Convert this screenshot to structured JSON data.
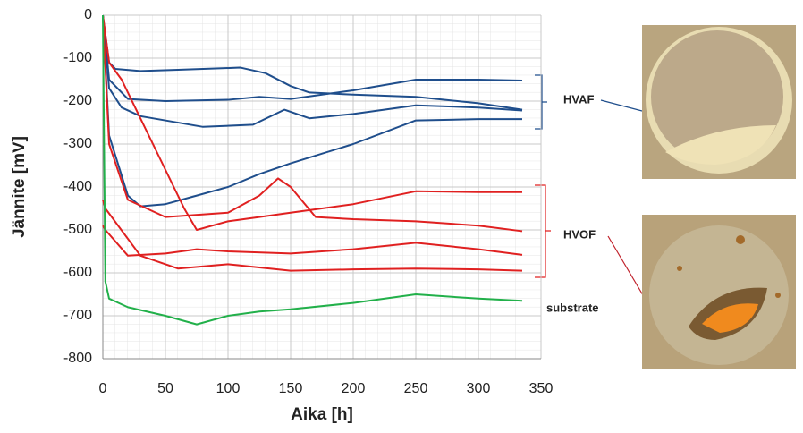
{
  "chart_data": {
    "type": "line",
    "xlabel": "Aika [h]",
    "ylabel": "Jännite [mV]",
    "xlim": [
      0,
      350
    ],
    "xticks": [
      0,
      50,
      100,
      150,
      200,
      250,
      300,
      350
    ],
    "ylim": [
      -800,
      0
    ],
    "yticks": [
      0,
      -100,
      -200,
      -300,
      -400,
      -500,
      -600,
      -700,
      -800
    ],
    "grid": true,
    "annotations": [
      "HVAF",
      "HVOF",
      "substrate"
    ],
    "series": [
      {
        "color": "#1f4e8c",
        "x": [
          0,
          5,
          10,
          30,
          60,
          110,
          130,
          150,
          165,
          200,
          250,
          300,
          335
        ],
        "values": [
          0,
          -110,
          -125,
          -130,
          -127,
          -122,
          -135,
          -165,
          -180,
          -185,
          -190,
          -205,
          -220
        ]
      },
      {
        "color": "#1f4e8c",
        "x": [
          0,
          5,
          20,
          50,
          100,
          125,
          150,
          200,
          250,
          300,
          335
        ],
        "values": [
          0,
          -150,
          -195,
          -200,
          -197,
          -190,
          -195,
          -175,
          -150,
          -150,
          -152
        ]
      },
      {
        "color": "#1f4e8c",
        "x": [
          0,
          5,
          15,
          30,
          80,
          120,
          145,
          165,
          200,
          250,
          300,
          335
        ],
        "values": [
          0,
          -170,
          -215,
          -235,
          -260,
          -255,
          -220,
          -240,
          -230,
          -210,
          -215,
          -222
        ]
      },
      {
        "color": "#1f4e8c",
        "x": [
          0,
          5,
          20,
          30,
          50,
          75,
          100,
          125,
          150,
          200,
          250,
          300,
          335
        ],
        "values": [
          0,
          -280,
          -420,
          -445,
          -440,
          -420,
          -400,
          -370,
          -345,
          -300,
          -245,
          -242,
          -242
        ]
      },
      {
        "color": "#e02020",
        "x": [
          0,
          5,
          15,
          40,
          65,
          75,
          100,
          125,
          150,
          200,
          250,
          300,
          335
        ],
        "values": [
          0,
          -110,
          -150,
          -300,
          -450,
          -500,
          -480,
          -470,
          -460,
          -440,
          -410,
          -412,
          -412
        ]
      },
      {
        "color": "#e02020",
        "x": [
          0,
          5,
          20,
          50,
          100,
          125,
          140,
          150,
          170,
          200,
          250,
          300,
          335
        ],
        "values": [
          0,
          -300,
          -430,
          -470,
          -460,
          -420,
          -380,
          -400,
          -470,
          -475,
          -480,
          -490,
          -503
        ]
      },
      {
        "color": "#e02020",
        "x": [
          0,
          2,
          20,
          50,
          75,
          100,
          150,
          200,
          250,
          300,
          335
        ],
        "values": [
          -490,
          -500,
          -560,
          -555,
          -545,
          -550,
          -555,
          -545,
          -530,
          -545,
          -558
        ]
      },
      {
        "color": "#e02020",
        "x": [
          0,
          2,
          30,
          60,
          100,
          150,
          200,
          250,
          300,
          335
        ],
        "values": [
          -430,
          -450,
          -560,
          -590,
          -580,
          -595,
          -592,
          -590,
          -592,
          -595
        ]
      },
      {
        "color": "#22b04a",
        "x": [
          0,
          2,
          5,
          20,
          50,
          75,
          100,
          125,
          150,
          200,
          250,
          300,
          335
        ],
        "values": [
          0,
          -620,
          -660,
          -680,
          -700,
          -720,
          -700,
          -690,
          -685,
          -670,
          -650,
          -660,
          -665
        ]
      }
    ]
  }
}
